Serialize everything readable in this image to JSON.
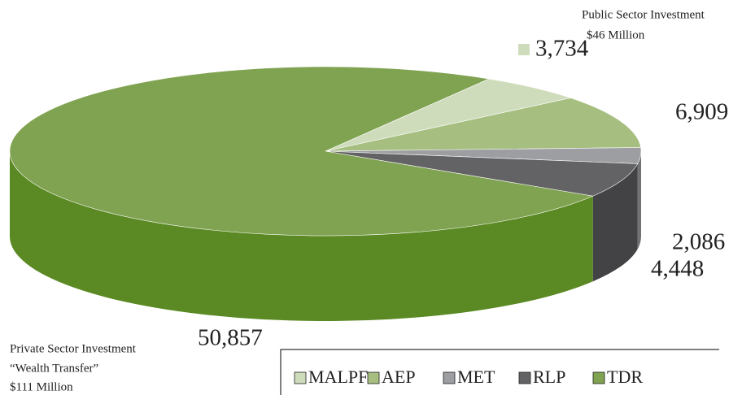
{
  "chart_data": {
    "type": "pie",
    "categories": [
      "MALPF",
      "AEP",
      "MET",
      "RLP",
      "TDR"
    ],
    "values": [
      3734,
      6909,
      2086,
      4448,
      50857
    ],
    "value_labels": [
      "3,734",
      "6,909",
      "2,086",
      "4,448",
      "50,857"
    ],
    "colors": [
      "#cfdcbc",
      "#a6bf80",
      "#9c9ea2",
      "#636366",
      "#80a352"
    ],
    "side_colors": [
      "#b2c39c",
      "#88a262",
      "#707275",
      "#434345",
      "#5b8a24"
    ],
    "annotations": [
      "Public Sector Investment",
      "$46 Million",
      "Private Sector Investment",
      "“Wealth Transfer”",
      "$111 Million"
    ],
    "legend": "bottom-right"
  }
}
